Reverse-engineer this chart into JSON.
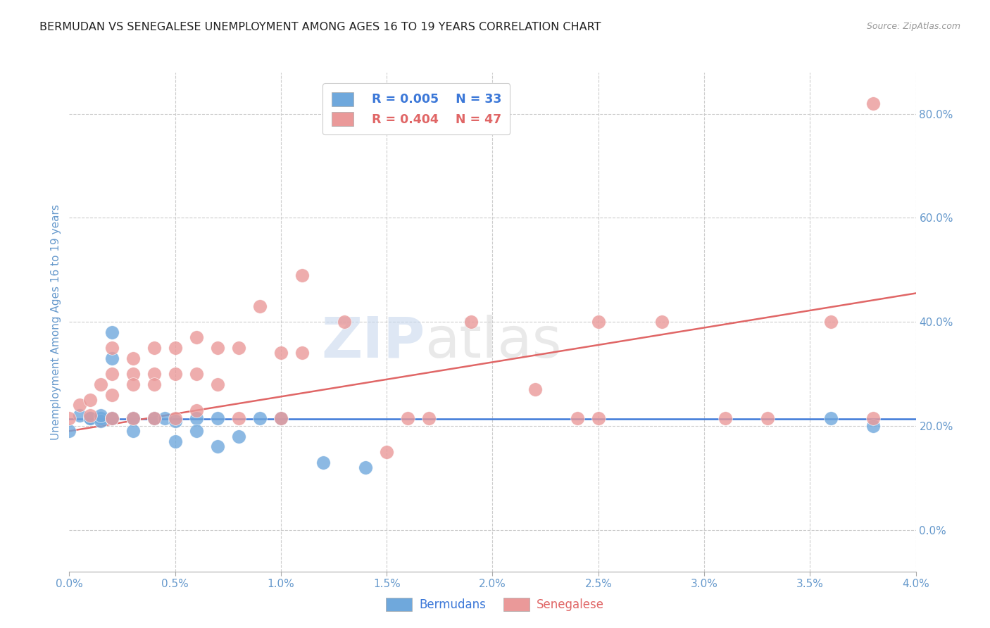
{
  "title": "BERMUDAN VS SENEGALESE UNEMPLOYMENT AMONG AGES 16 TO 19 YEARS CORRELATION CHART",
  "source": "Source: ZipAtlas.com",
  "xlabel_ticks": [
    "0.0%",
    "0.5%",
    "1.0%",
    "1.5%",
    "2.0%",
    "2.5%",
    "3.0%",
    "3.5%",
    "4.0%"
  ],
  "xlabel_vals": [
    0.0,
    0.005,
    0.01,
    0.015,
    0.02,
    0.025,
    0.03,
    0.035,
    0.04
  ],
  "ylabel_ticks_right": [
    "0.0%",
    "20.0%",
    "40.0%",
    "60.0%",
    "80.0%"
  ],
  "ylabel_vals": [
    0.0,
    0.2,
    0.4,
    0.6,
    0.8
  ],
  "ylabel_label": "Unemployment Among Ages 16 to 19 years",
  "legend_label1": "Bermudans",
  "legend_label2": "Senegalese",
  "legend_r1": "R = 0.005",
  "legend_n1": "N = 33",
  "legend_r2": "R = 0.404",
  "legend_n2": "N = 47",
  "watermark": "ZIPatlas",
  "blue_color": "#6fa8dc",
  "pink_color": "#ea9999",
  "blue_line_color": "#3c78d8",
  "pink_line_color": "#e06666",
  "axis_label_color": "#6699cc",
  "title_color": "#222222",
  "grid_color": "#cccccc",
  "bermudans_x": [
    0.0,
    0.0005,
    0.001,
    0.001,
    0.0015,
    0.0015,
    0.0015,
    0.002,
    0.002,
    0.002,
    0.002,
    0.002,
    0.003,
    0.003,
    0.003,
    0.003,
    0.003,
    0.004,
    0.004,
    0.0045,
    0.005,
    0.005,
    0.006,
    0.006,
    0.007,
    0.007,
    0.008,
    0.009,
    0.01,
    0.012,
    0.014,
    0.036,
    0.038
  ],
  "bermudans_y": [
    0.19,
    0.22,
    0.215,
    0.215,
    0.215,
    0.21,
    0.22,
    0.38,
    0.33,
    0.215,
    0.215,
    0.215,
    0.215,
    0.215,
    0.215,
    0.215,
    0.19,
    0.215,
    0.215,
    0.215,
    0.21,
    0.17,
    0.215,
    0.19,
    0.215,
    0.16,
    0.18,
    0.215,
    0.215,
    0.13,
    0.12,
    0.215,
    0.2
  ],
  "senegalese_x": [
    0.0,
    0.0005,
    0.001,
    0.001,
    0.0015,
    0.002,
    0.002,
    0.002,
    0.002,
    0.003,
    0.003,
    0.003,
    0.003,
    0.004,
    0.004,
    0.004,
    0.004,
    0.005,
    0.005,
    0.005,
    0.006,
    0.006,
    0.006,
    0.007,
    0.007,
    0.008,
    0.008,
    0.009,
    0.01,
    0.01,
    0.011,
    0.011,
    0.013,
    0.015,
    0.016,
    0.017,
    0.019,
    0.022,
    0.024,
    0.025,
    0.025,
    0.028,
    0.031,
    0.033,
    0.036,
    0.038,
    0.038
  ],
  "senegalese_y": [
    0.215,
    0.24,
    0.25,
    0.22,
    0.28,
    0.35,
    0.3,
    0.26,
    0.215,
    0.33,
    0.3,
    0.28,
    0.215,
    0.35,
    0.3,
    0.28,
    0.215,
    0.35,
    0.3,
    0.215,
    0.37,
    0.3,
    0.23,
    0.35,
    0.28,
    0.35,
    0.215,
    0.43,
    0.34,
    0.215,
    0.49,
    0.34,
    0.4,
    0.15,
    0.215,
    0.215,
    0.4,
    0.27,
    0.215,
    0.4,
    0.215,
    0.4,
    0.215,
    0.215,
    0.4,
    0.82,
    0.215
  ],
  "xlim": [
    0.0,
    0.04
  ],
  "ylim": [
    -0.08,
    0.88
  ],
  "blue_line_y0": 0.214,
  "blue_line_y1": 0.214,
  "pink_line_y0": 0.19,
  "pink_line_y1": 0.455
}
